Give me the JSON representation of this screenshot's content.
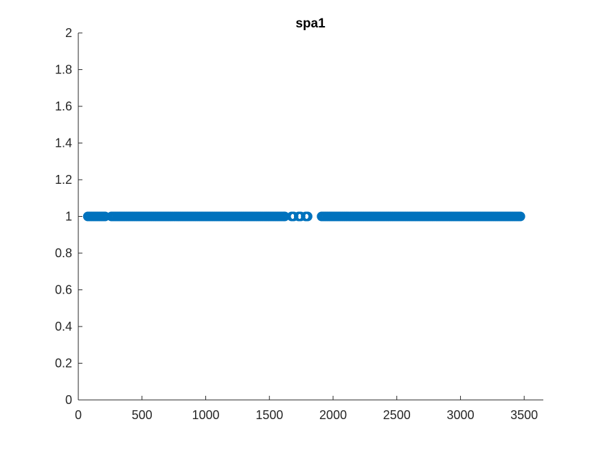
{
  "chart_data": {
    "type": "scatter",
    "title": "spa1",
    "xlabel": "",
    "ylabel": "",
    "xlim": [
      0,
      3650
    ],
    "ylim": [
      0,
      2
    ],
    "xticks": [
      0,
      500,
      1000,
      1500,
      2000,
      2500,
      3000,
      3500
    ],
    "xtick_labels": [
      "0",
      "500",
      "1000",
      "1500",
      "2000",
      "2500",
      "3000",
      "3500"
    ],
    "yticks": [
      0,
      0.2,
      0.4,
      0.6,
      0.8,
      1,
      1.2,
      1.4,
      1.6,
      1.8,
      2
    ],
    "ytick_labels": [
      "0",
      "0.2",
      "0.4",
      "0.6",
      "0.8",
      "1",
      "1.2",
      "1.4",
      "1.6",
      "1.8",
      "2"
    ],
    "grid": false,
    "marker": "o",
    "marker_color": "#0072BD",
    "series": [
      {
        "x": [
          75,
          90,
          105,
          120,
          135,
          150,
          165,
          180,
          195,
          210,
          260,
          275,
          290,
          305,
          320,
          335,
          350,
          365,
          380,
          395,
          410,
          425,
          440,
          455,
          470,
          485,
          500,
          515,
          530,
          545,
          560,
          575,
          590,
          605,
          620,
          635,
          650,
          665,
          680,
          695,
          710,
          725,
          740,
          755,
          770,
          785,
          800,
          815,
          830,
          845,
          860,
          875,
          890,
          905,
          920,
          935,
          950,
          965,
          980,
          995,
          1010,
          1025,
          1040,
          1055,
          1070,
          1085,
          1100,
          1115,
          1130,
          1145,
          1160,
          1175,
          1190,
          1205,
          1220,
          1235,
          1250,
          1265,
          1280,
          1295,
          1310,
          1325,
          1340,
          1355,
          1370,
          1385,
          1400,
          1415,
          1430,
          1445,
          1460,
          1475,
          1490,
          1505,
          1520,
          1535,
          1550,
          1565,
          1580,
          1595,
          1610,
          1620,
          1675,
          1690,
          1730,
          1745,
          1785,
          1800,
          1910,
          1925,
          1940,
          1955,
          1970,
          1985,
          2000,
          2015,
          2030,
          2045,
          2060,
          2075,
          2090,
          2105,
          2120,
          2135,
          2150,
          2165,
          2180,
          2195,
          2210,
          2225,
          2240,
          2255,
          2270,
          2285,
          2300,
          2315,
          2330,
          2345,
          2360,
          2375,
          2390,
          2405,
          2420,
          2435,
          2450,
          2465,
          2480,
          2495,
          2510,
          2525,
          2540,
          2555,
          2570,
          2585,
          2600,
          2615,
          2630,
          2645,
          2660,
          2675,
          2690,
          2705,
          2720,
          2735,
          2750,
          2765,
          2780,
          2795,
          2810,
          2825,
          2840,
          2855,
          2870,
          2885,
          2900,
          2915,
          2930,
          2945,
          2960,
          2975,
          2990,
          3005,
          3020,
          3035,
          3050,
          3065,
          3080,
          3095,
          3110,
          3125,
          3140,
          3155,
          3170,
          3185,
          3200,
          3215,
          3230,
          3245,
          3260,
          3275,
          3290,
          3305,
          3320,
          3335,
          3350,
          3365,
          3380,
          3395,
          3410,
          3425,
          3440,
          3455,
          3470
        ],
        "y": 1
      }
    ]
  }
}
